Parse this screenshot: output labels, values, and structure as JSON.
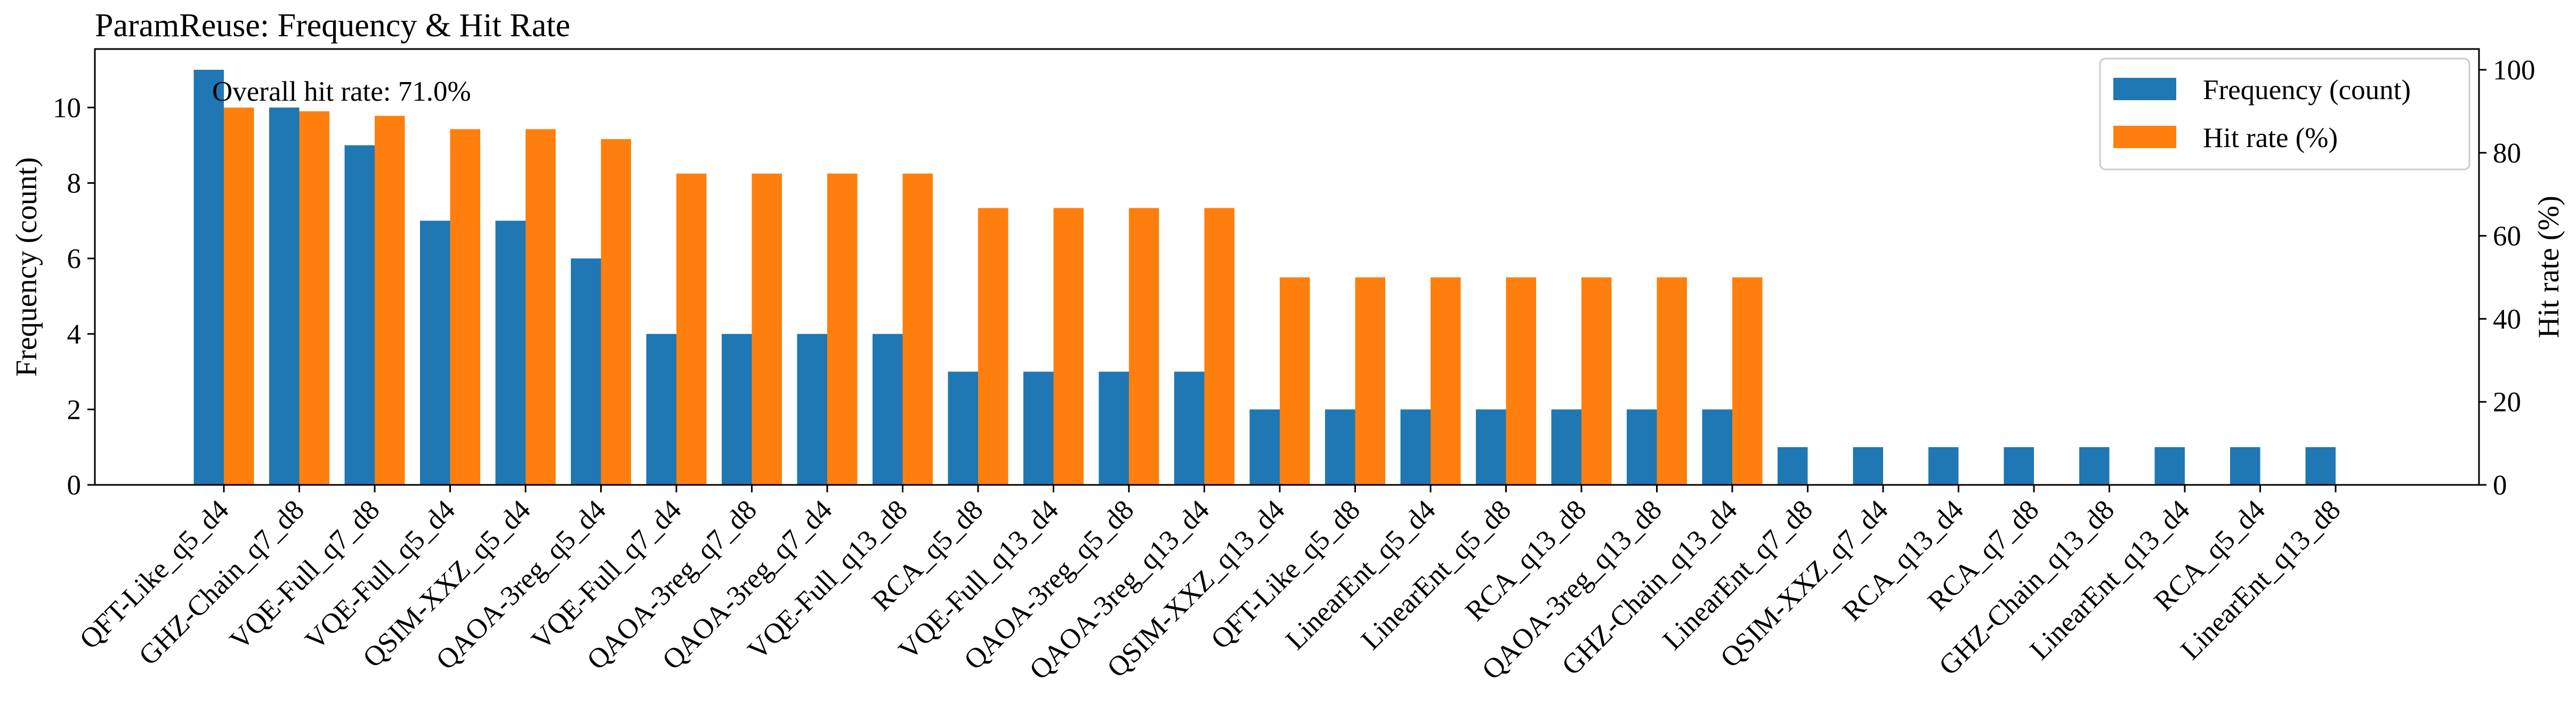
{
  "chart_data": {
    "type": "bar",
    "title": "ParamReuse: Frequency & Hit Rate",
    "xlabel": "",
    "ylabel": "Frequency (count)",
    "y2label": "Hit rate (%)",
    "ylim": [
      0,
      11.55
    ],
    "y2lim": [
      0,
      105
    ],
    "yticks": [
      0,
      2,
      4,
      6,
      8,
      10
    ],
    "y2ticks": [
      0,
      20,
      40,
      60,
      80,
      100
    ],
    "grid": false,
    "legend_position": "upper-right",
    "annotation": "Overall hit rate: 71.0%",
    "categories": [
      "QFT-Like_q5_d4",
      "GHZ-Chain_q7_d8",
      "VQE-Full_q7_d8",
      "VQE-Full_q5_d4",
      "QSIM-XXZ_q5_d4",
      "QAOA-3reg_q5_d4",
      "VQE-Full_q7_d4",
      "QAOA-3reg_q7_d8",
      "QAOA-3reg_q7_d4",
      "VQE-Full_q13_d8",
      "RCA_q5_d8",
      "VQE-Full_q13_d4",
      "QAOA-3reg_q5_d8",
      "QAOA-3reg_q13_d4",
      "QSIM-XXZ_q13_d4",
      "QFT-Like_q5_d8",
      "LinearEnt_q5_d4",
      "LinearEnt_q5_d8",
      "RCA_q13_d8",
      "QAOA-3reg_q13_d8",
      "GHZ-Chain_q13_d4",
      "LinearEnt_q7_d8",
      "QSIM-XXZ_q7_d4",
      "RCA_q13_d4",
      "RCA_q7_d8",
      "GHZ-Chain_q13_d8",
      "LinearEnt_q13_d4",
      "RCA_q5_d4",
      "LinearEnt_q13_d8"
    ],
    "series": [
      {
        "name": "Frequency (count)",
        "axis": "left",
        "color": "#1f77b4",
        "values": [
          11,
          10,
          9,
          7,
          7,
          6,
          4,
          4,
          4,
          4,
          3,
          3,
          3,
          3,
          2,
          2,
          2,
          2,
          2,
          2,
          2,
          1,
          1,
          1,
          1,
          1,
          1,
          1,
          1
        ]
      },
      {
        "name": "Hit rate (%)",
        "axis": "right",
        "color": "#ff7f0e",
        "values": [
          90.9,
          90.0,
          88.9,
          85.7,
          85.7,
          83.3,
          75.0,
          75.0,
          75.0,
          75.0,
          66.7,
          66.7,
          66.7,
          66.7,
          50.0,
          50.0,
          50.0,
          50.0,
          50.0,
          50.0,
          50.0,
          0,
          0,
          0,
          0,
          0,
          0,
          0,
          0
        ]
      }
    ]
  }
}
